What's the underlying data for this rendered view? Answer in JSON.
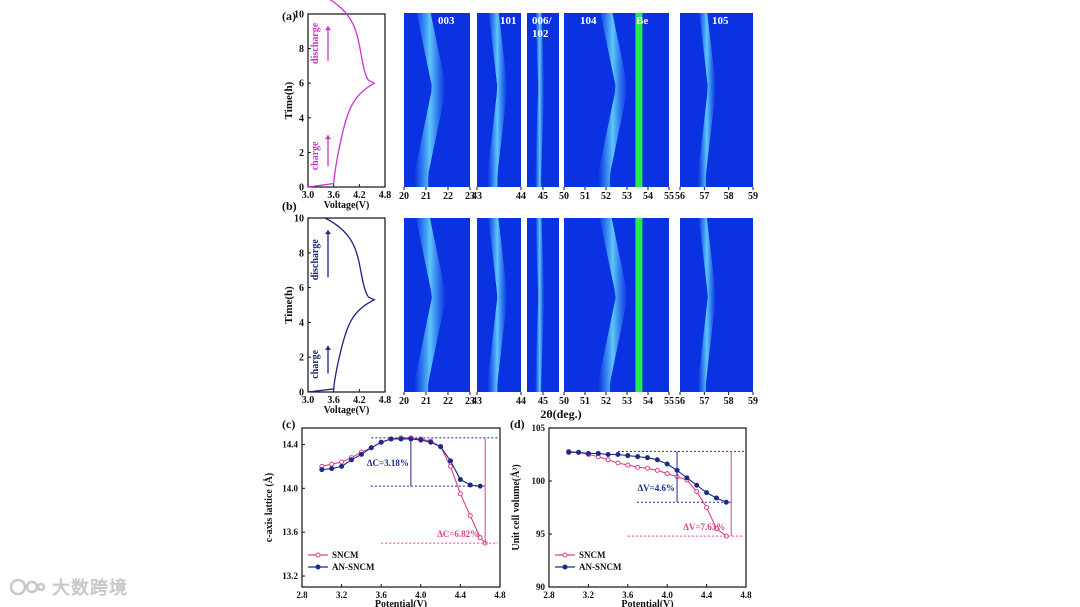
{
  "figure": {
    "panel_labels": [
      "(a)",
      "(b)",
      "(c)",
      "(d)"
    ],
    "voltage_xlabel": "Voltage(V)",
    "voltage_ticks": [
      "3.0",
      "3.6",
      "4.2",
      "4.8"
    ],
    "time_ylabel": "Time(h)",
    "time_ticks_a": [
      "0",
      "2",
      "4",
      "6",
      "8",
      "10"
    ],
    "time_ticks_b": [
      "0",
      "2",
      "4",
      "6",
      "8",
      "10"
    ],
    "charge_label": "charge",
    "discharge_label": "discharge",
    "colors": {
      "a_curve": "#cc33cc",
      "b_curve": "#1a237e",
      "map_bg": "#0a32e0",
      "map_band": "#4ec9ff",
      "map_be": "#2aff3a"
    },
    "peak_labels": [
      "003",
      "101",
      "006/\n102",
      "104",
      "Be",
      "105"
    ],
    "map_ticks": [
      [
        "20",
        "21",
        "22",
        "23"
      ],
      [
        "43",
        "44"
      ],
      [
        "45"
      ],
      [
        "50",
        "51",
        "52",
        "53",
        "54",
        "55"
      ],
      [
        "56",
        "57",
        "58",
        "59"
      ]
    ],
    "two_theta_label": "2θ(deg.)",
    "watermark": "大数跨境"
  },
  "chart_data": [
    {
      "panel": "(c)",
      "type": "line",
      "xlabel": "Potential(V)",
      "ylabel": "c-axis lattice (Å)",
      "xlim": [
        2.8,
        4.8
      ],
      "ylim": [
        13.1,
        14.55
      ],
      "xticks": [
        "2.8",
        "3.2",
        "3.6",
        "4.0",
        "4.4",
        "4.8"
      ],
      "yticks": [
        "13.2",
        "13.6",
        "14.0",
        "14.4"
      ],
      "series": [
        {
          "name": "SNCM",
          "color": "#e0408a",
          "x": [
            3.0,
            3.1,
            3.2,
            3.3,
            3.4,
            3.5,
            3.6,
            3.7,
            3.8,
            3.9,
            4.0,
            4.1,
            4.2,
            4.3,
            4.4,
            4.5,
            4.6,
            4.65
          ],
          "y": [
            14.2,
            14.22,
            14.24,
            14.28,
            14.33,
            14.37,
            14.42,
            14.45,
            14.46,
            14.46,
            14.45,
            14.43,
            14.38,
            14.2,
            13.95,
            13.75,
            13.55,
            13.5
          ]
        },
        {
          "name": "AN-SNCM",
          "color": "#1a2a8c",
          "x": [
            3.0,
            3.1,
            3.2,
            3.3,
            3.4,
            3.5,
            3.6,
            3.7,
            3.8,
            3.9,
            4.0,
            4.1,
            4.2,
            4.3,
            4.4,
            4.5,
            4.6
          ],
          "y": [
            14.17,
            14.18,
            14.2,
            14.26,
            14.31,
            14.37,
            14.42,
            14.45,
            14.45,
            14.45,
            14.44,
            14.42,
            14.38,
            14.25,
            14.08,
            14.03,
            14.02
          ]
        }
      ],
      "annotations": [
        "ΔC=3.18%",
        "ΔC=6.82%"
      ]
    },
    {
      "panel": "(d)",
      "type": "line",
      "xlabel": "Potential(V)",
      "ylabel": "Unit cell volume(Å³)",
      "xlim": [
        2.8,
        4.8
      ],
      "ylim": [
        90,
        105
      ],
      "xticks": [
        "2.8",
        "3.2",
        "3.6",
        "4.0",
        "4.4",
        "4.8"
      ],
      "yticks": [
        "90",
        "95",
        "100",
        "105"
      ],
      "series": [
        {
          "name": "SNCM",
          "color": "#e0408a",
          "x": [
            3.0,
            3.1,
            3.2,
            3.3,
            3.4,
            3.5,
            3.6,
            3.7,
            3.8,
            3.9,
            4.0,
            4.1,
            4.2,
            4.3,
            4.4,
            4.5,
            4.6
          ],
          "y": [
            102.8,
            102.7,
            102.5,
            102.3,
            102.0,
            101.7,
            101.5,
            101.3,
            101.2,
            101.0,
            100.7,
            100.4,
            100.1,
            99.0,
            97.5,
            95.5,
            94.8
          ]
        },
        {
          "name": "AN-SNCM",
          "color": "#1a2a8c",
          "x": [
            3.0,
            3.1,
            3.2,
            3.3,
            3.4,
            3.5,
            3.6,
            3.7,
            3.8,
            3.9,
            4.0,
            4.1,
            4.2,
            4.3,
            4.4,
            4.5,
            4.6
          ],
          "y": [
            102.7,
            102.7,
            102.6,
            102.6,
            102.5,
            102.5,
            102.4,
            102.3,
            102.2,
            102.0,
            101.6,
            101.0,
            100.3,
            99.6,
            98.9,
            98.4,
            98.0
          ]
        }
      ],
      "annotations": [
        "ΔV=4.6%",
        "ΔV=7.63%"
      ]
    }
  ]
}
